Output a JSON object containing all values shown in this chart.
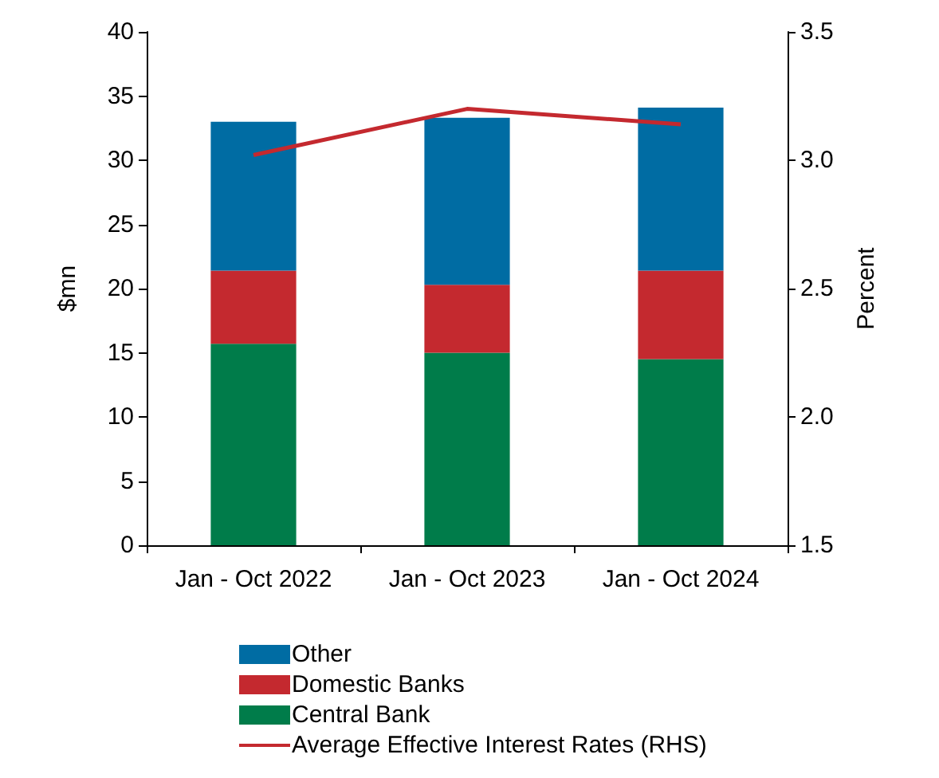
{
  "chart_data": {
    "type": "bar",
    "stacked": true,
    "ylabel": "$mn",
    "y2label": "Percent",
    "categories": [
      "Jan - Oct 2022",
      "Jan - Oct 2023",
      "Jan - Oct 2024"
    ],
    "series": [
      {
        "name": "Central Bank",
        "color": "#007c4a",
        "values": [
          15.7,
          15.0,
          14.5
        ]
      },
      {
        "name": "Domestic Banks",
        "color": "#c4292f",
        "values": [
          5.7,
          5.3,
          6.9
        ]
      },
      {
        "name": "Other",
        "color": "#006ca3",
        "values": [
          11.6,
          13.0,
          12.7
        ]
      },
      {
        "name": "Average Effective Interest Rates (RHS)",
        "type": "line",
        "axis": "y2",
        "color": "#c4292f",
        "values": [
          3.02,
          3.2,
          3.14
        ]
      }
    ],
    "ylim": [
      0,
      40
    ],
    "yticks": [
      0,
      5,
      10,
      15,
      20,
      25,
      30,
      35,
      40
    ],
    "y2lim": [
      1.5,
      3.5
    ],
    "y2ticks": [
      {
        "value": 1.5,
        "label": "1.5"
      },
      {
        "value": 2,
        "label": "2.0"
      },
      {
        "value": 2.5,
        "label": "2.5"
      },
      {
        "value": 3,
        "label": "3.0"
      },
      {
        "value": 3.5,
        "label": "3.5"
      }
    ],
    "grid": false,
    "legend": "bottom",
    "marker": "none"
  }
}
